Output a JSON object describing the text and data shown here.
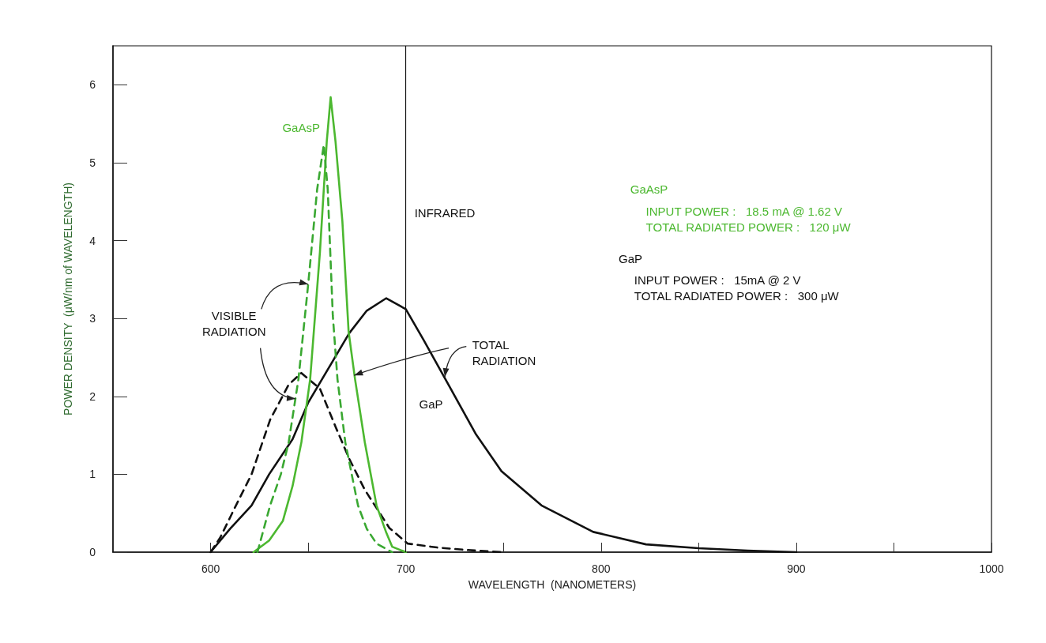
{
  "chart_data": {
    "type": "line",
    "xlabel": "WAVELENGTH  (NANOMETERS)",
    "ylabel": "POWER DENSITY  (μW/nm of WAVELENGTH)",
    "xlim": [
      550,
      1000
    ],
    "ylim": [
      0,
      6.5
    ],
    "xticks": [
      600,
      {
        "value": 650,
        "label": null
      },
      700,
      {
        "value": 750,
        "label": null
      },
      800,
      {
        "value": 850,
        "label": null
      },
      900,
      {
        "value": 950,
        "label": null
      },
      1000
    ],
    "yticks": [
      0,
      1,
      2,
      3,
      4,
      5,
      6
    ],
    "marker": "none",
    "series": [
      {
        "color": "#111111",
        "line_style": "solid",
        "x": [
          600,
          610,
          621,
          630,
          642,
          650,
          663,
          671,
          680,
          690,
          700,
          709,
          722.5,
          736,
          749,
          769.5,
          796,
          823,
          850,
          875,
          900
        ],
        "values": [
          0,
          0.3,
          0.6,
          1.0,
          1.45,
          1.92,
          2.47,
          2.81,
          3.1,
          3.26,
          3.12,
          2.73,
          2.12,
          1.51,
          1.04,
          0.6,
          0.26,
          0.1,
          0.05,
          0.02,
          0
        ]
      },
      {
        "color": "#111111",
        "line_style": "dashed",
        "x": [
          600,
          605,
          613,
          621,
          630.5,
          640,
          646.5,
          656,
          664,
          671,
          679,
          691.6,
          701,
          716,
          730,
          743,
          750
        ],
        "values": [
          0,
          0.19,
          0.6,
          1.0,
          1.7,
          2.15,
          2.3,
          2.1,
          1.61,
          1.2,
          0.8,
          0.31,
          0.11,
          0.06,
          0.03,
          0.01,
          0
        ]
      },
      {
        "color": "#4cb830",
        "line_style": "solid",
        "x": [
          622,
          630,
          637,
          642,
          646.5,
          651,
          656,
          659.5,
          661.5,
          664,
          667.5,
          670.7,
          674,
          679,
          685,
          690,
          693,
          700
        ],
        "values": [
          0,
          0.15,
          0.4,
          0.85,
          1.41,
          2.22,
          3.85,
          5.27,
          5.84,
          5.27,
          4.25,
          2.83,
          2.22,
          1.41,
          0.6,
          0.25,
          0.07,
          0
        ]
      },
      {
        "color": "#3aa832",
        "line_style": "dashed",
        "x": [
          624,
          630.5,
          636,
          640,
          645,
          650,
          654.6,
          658,
          660,
          662.6,
          665,
          669,
          675.5,
          680,
          685,
          693
        ],
        "values": [
          0,
          0.6,
          1.0,
          1.41,
          2.22,
          3.44,
          4.66,
          5.23,
          4.66,
          3.04,
          2.22,
          1.41,
          0.6,
          0.3,
          0.11,
          0
        ]
      }
    ],
    "ref_lines": [
      {
        "axis": "x",
        "value": 700,
        "label": "INFRARED",
        "color": "#111111"
      }
    ],
    "annotations": [
      "GaAsP",
      "GaP",
      {
        "text": "VISIBLE\nRADIATION",
        "x": 650,
        "y": 3.44
      },
      {
        "text": "TOTAL\nRADIATION",
        "x": 720,
        "y": 2.25
      },
      "GaAsP",
      "INPUT POWER :   18.5 mA @ 1.62 V",
      "TOTAL RADIATED POWER :   120 μW",
      "GaP",
      "INPUT POWER :   15mA @ 2 V",
      "TOTAL RADIATED POWER :   300 μW"
    ]
  }
}
